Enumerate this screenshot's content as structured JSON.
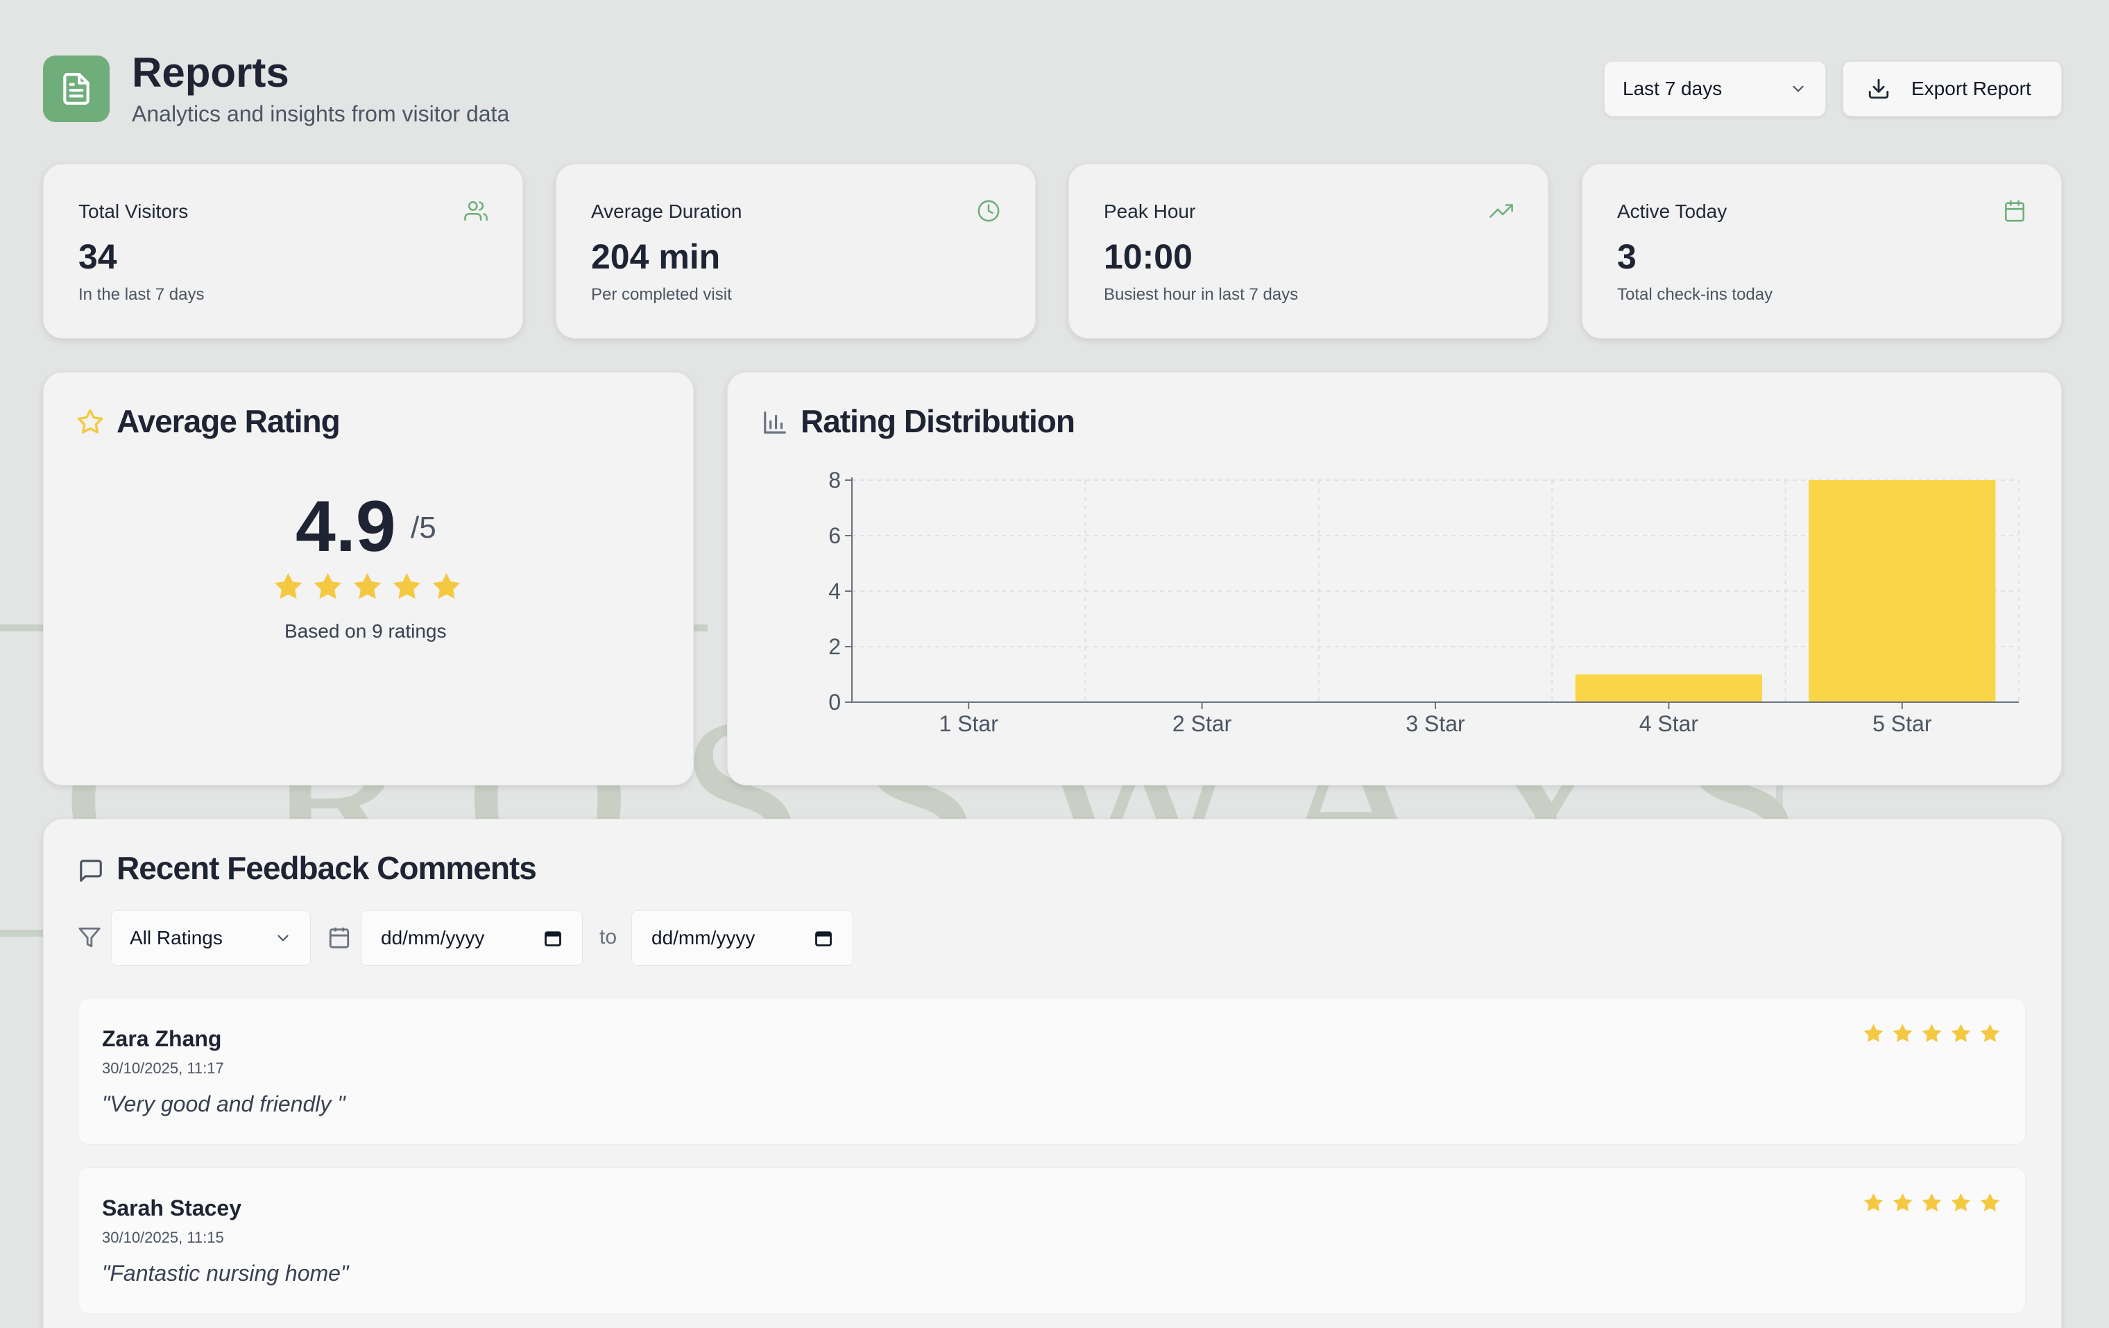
{
  "header": {
    "title": "Reports",
    "subtitle": "Analytics and insights from visitor data",
    "range_value": "Last 7 days",
    "export_label": "Export Report",
    "logo_icon": "report-document-icon"
  },
  "stats": [
    {
      "label": "Total Visitors",
      "value": "34",
      "sub": "In the last 7 days",
      "icon": "users-icon"
    },
    {
      "label": "Average Duration",
      "value": "204 min",
      "sub": "Per completed visit",
      "icon": "clock-icon"
    },
    {
      "label": "Peak Hour",
      "value": "10:00",
      "sub": "Busiest hour in last 7 days",
      "icon": "trending-up-icon"
    },
    {
      "label": "Active Today",
      "value": "3",
      "sub": "Total check-ins today",
      "icon": "calendar-icon"
    }
  ],
  "rating": {
    "title": "Average Rating",
    "value": "4.9",
    "out_of": "/5",
    "stars": 5,
    "based_on": "Based on 9 ratings"
  },
  "distribution": {
    "title": "Rating Distribution"
  },
  "chart_data": {
    "type": "bar",
    "categories": [
      "1 Star",
      "2 Star",
      "3 Star",
      "4 Star",
      "5 Star"
    ],
    "values": [
      0,
      0,
      0,
      1,
      8
    ],
    "yticks": [
      "0",
      "2",
      "4",
      "6",
      "8"
    ],
    "ylim": [
      0,
      8
    ],
    "grid": true,
    "bar_color": "#f8d647"
  },
  "feedback": {
    "title": "Recent Feedback Comments",
    "rating_filter": "All Ratings",
    "date_from": "dd/mm/yyyy",
    "date_to": "dd/mm/yyyy",
    "to_label": "to",
    "comments": [
      {
        "name": "Zara Zhang",
        "date": "30/10/2025, 11:17",
        "text": "\"Very good and friendly \"",
        "stars": 5
      },
      {
        "name": "Sarah Stacey",
        "date": "30/10/2025, 11:15",
        "text": "\"Fantastic nursing home\"",
        "stars": 5
      }
    ]
  },
  "colors": {
    "accent": "#6fae7b",
    "star": "#f5c842",
    "text_dark": "#1e2433"
  },
  "watermark_text": "CROSSWAYS"
}
